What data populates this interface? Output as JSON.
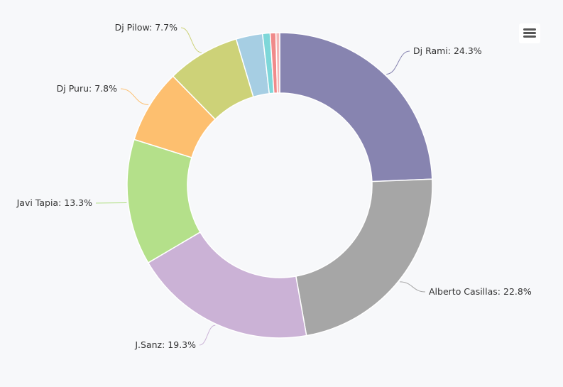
{
  "toolbar": {
    "menu_icon": "hamburger-menu-icon"
  },
  "chart_data": {
    "type": "pie",
    "variant": "donut",
    "title": "",
    "legend": "none",
    "data_labels": true,
    "slices": [
      {
        "name": "Dj Rami",
        "value": 24.3,
        "label": "Dj Rami: 24.3%",
        "color": "#8784b0"
      },
      {
        "name": "Alberto Casillas",
        "value": 22.8,
        "label": "Alberto Casillas: 22.8%",
        "color": "#a6a6a6"
      },
      {
        "name": "J.Sanz",
        "value": 19.3,
        "label": "J.Sanz: 19.3%",
        "color": "#cbb2d6"
      },
      {
        "name": "Javi Tapia",
        "value": 13.3,
        "label": "Javi Tapia: 13.3%",
        "color": "#b4e08a"
      },
      {
        "name": "Dj Puru",
        "value": 7.8,
        "label": "Dj Puru: 7.8%",
        "color": "#fdbf6f"
      },
      {
        "name": "Dj Pilow",
        "value": 7.7,
        "label": "Dj Pilow: 7.7%",
        "color": "#cdd278"
      },
      {
        "name": "",
        "value": 2.8,
        "label": "",
        "color": "#a6cee3"
      },
      {
        "name": "",
        "value": 0.8,
        "label": "",
        "color": "#7ed7d9"
      },
      {
        "name": "",
        "value": 0.6,
        "label": "",
        "color": "#f08a8a"
      },
      {
        "name": "",
        "value": 0.4,
        "label": "",
        "color": "#f4b6b6"
      }
    ]
  }
}
